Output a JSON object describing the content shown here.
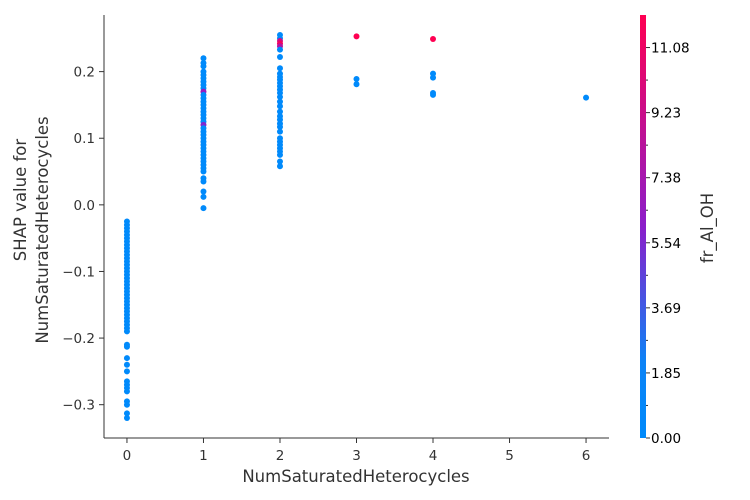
{
  "chart_data": {
    "type": "scatter",
    "title": "",
    "xlabel": "NumSaturatedHeterocycles",
    "ylabel_lines": [
      "SHAP value for",
      "NumSaturatedHeterocycles"
    ],
    "xlim": [
      -0.3,
      6.3
    ],
    "ylim": [
      -0.35,
      0.285
    ],
    "x_ticks": [
      0,
      1,
      2,
      3,
      4,
      5,
      6
    ],
    "y_ticks": [
      -0.3,
      -0.2,
      -0.1,
      0.0,
      0.1,
      0.2
    ],
    "y_tick_labels": [
      "−0.3",
      "−0.2",
      "−0.1",
      "0.0",
      "0.1",
      "0.2"
    ],
    "grid": false,
    "colorbar": {
      "label": "fr_Al_OH",
      "range": [
        0.0,
        12.0
      ],
      "ticks": [
        "0.00",
        "1.85",
        "3.69",
        "5.54",
        "7.38",
        "9.23",
        "11.08"
      ],
      "low_color": "#008afb",
      "mid_color": "#8b1eca",
      "high_color": "#ff0052"
    },
    "points": [
      {
        "x": 0,
        "y": -0.025,
        "c": 0
      },
      {
        "x": 0,
        "y": -0.03,
        "c": 0
      },
      {
        "x": 0,
        "y": -0.035,
        "c": 0
      },
      {
        "x": 0,
        "y": -0.04,
        "c": 0
      },
      {
        "x": 0,
        "y": -0.045,
        "c": 0
      },
      {
        "x": 0,
        "y": -0.05,
        "c": 0
      },
      {
        "x": 0,
        "y": -0.055,
        "c": 0
      },
      {
        "x": 0,
        "y": -0.06,
        "c": 0
      },
      {
        "x": 0,
        "y": -0.065,
        "c": 0
      },
      {
        "x": 0,
        "y": -0.07,
        "c": 0
      },
      {
        "x": 0,
        "y": -0.075,
        "c": 0
      },
      {
        "x": 0,
        "y": -0.08,
        "c": 0
      },
      {
        "x": 0,
        "y": -0.085,
        "c": 0
      },
      {
        "x": 0,
        "y": -0.09,
        "c": 0
      },
      {
        "x": 0,
        "y": -0.095,
        "c": 0
      },
      {
        "x": 0,
        "y": -0.1,
        "c": 0
      },
      {
        "x": 0,
        "y": -0.105,
        "c": 0
      },
      {
        "x": 0,
        "y": -0.11,
        "c": 0
      },
      {
        "x": 0,
        "y": -0.115,
        "c": 0
      },
      {
        "x": 0,
        "y": -0.12,
        "c": 0
      },
      {
        "x": 0,
        "y": -0.125,
        "c": 0
      },
      {
        "x": 0,
        "y": -0.13,
        "c": 0
      },
      {
        "x": 0,
        "y": -0.135,
        "c": 0
      },
      {
        "x": 0,
        "y": -0.14,
        "c": 0
      },
      {
        "x": 0,
        "y": -0.145,
        "c": 0
      },
      {
        "x": 0,
        "y": -0.15,
        "c": 0
      },
      {
        "x": 0,
        "y": -0.155,
        "c": 0
      },
      {
        "x": 0,
        "y": -0.16,
        "c": 0
      },
      {
        "x": 0,
        "y": -0.165,
        "c": 0
      },
      {
        "x": 0,
        "y": -0.17,
        "c": 0
      },
      {
        "x": 0,
        "y": -0.175,
        "c": 0
      },
      {
        "x": 0,
        "y": -0.18,
        "c": 0
      },
      {
        "x": 0,
        "y": -0.185,
        "c": 0
      },
      {
        "x": 0,
        "y": -0.19,
        "c": 0
      },
      {
        "x": 0,
        "y": -0.21,
        "c": 0
      },
      {
        "x": 0,
        "y": -0.213,
        "c": 0
      },
      {
        "x": 0,
        "y": -0.23,
        "c": 0
      },
      {
        "x": 0,
        "y": -0.24,
        "c": 0
      },
      {
        "x": 0,
        "y": -0.25,
        "c": 0
      },
      {
        "x": 0,
        "y": -0.265,
        "c": 0
      },
      {
        "x": 0,
        "y": -0.27,
        "c": 0
      },
      {
        "x": 0,
        "y": -0.275,
        "c": 0
      },
      {
        "x": 0,
        "y": -0.28,
        "c": 0
      },
      {
        "x": 0,
        "y": -0.295,
        "c": 0
      },
      {
        "x": 0,
        "y": -0.3,
        "c": 0
      },
      {
        "x": 0,
        "y": -0.313,
        "c": 0
      },
      {
        "x": 0,
        "y": -0.32,
        "c": 0
      },
      {
        "x": 1,
        "y": 0.22,
        "c": 0
      },
      {
        "x": 1,
        "y": 0.213,
        "c": 0
      },
      {
        "x": 1,
        "y": 0.208,
        "c": 0
      },
      {
        "x": 1,
        "y": 0.2,
        "c": 0
      },
      {
        "x": 1,
        "y": 0.195,
        "c": 0
      },
      {
        "x": 1,
        "y": 0.19,
        "c": 0
      },
      {
        "x": 1,
        "y": 0.185,
        "c": 0
      },
      {
        "x": 1,
        "y": 0.18,
        "c": 0
      },
      {
        "x": 1,
        "y": 0.175,
        "c": 0
      },
      {
        "x": 1,
        "y": 0.17,
        "c": 6.5
      },
      {
        "x": 1,
        "y": 0.165,
        "c": 0
      },
      {
        "x": 1,
        "y": 0.16,
        "c": 0
      },
      {
        "x": 1,
        "y": 0.155,
        "c": 0
      },
      {
        "x": 1,
        "y": 0.15,
        "c": 0
      },
      {
        "x": 1,
        "y": 0.145,
        "c": 0
      },
      {
        "x": 1,
        "y": 0.14,
        "c": 0
      },
      {
        "x": 1,
        "y": 0.135,
        "c": 0
      },
      {
        "x": 1,
        "y": 0.13,
        "c": 0
      },
      {
        "x": 1,
        "y": 0.125,
        "c": 0
      },
      {
        "x": 1,
        "y": 0.12,
        "c": 5.5
      },
      {
        "x": 1,
        "y": 0.115,
        "c": 0
      },
      {
        "x": 1,
        "y": 0.11,
        "c": 0
      },
      {
        "x": 1,
        "y": 0.105,
        "c": 0
      },
      {
        "x": 1,
        "y": 0.1,
        "c": 0
      },
      {
        "x": 1,
        "y": 0.095,
        "c": 0
      },
      {
        "x": 1,
        "y": 0.09,
        "c": 0
      },
      {
        "x": 1,
        "y": 0.085,
        "c": 0
      },
      {
        "x": 1,
        "y": 0.08,
        "c": 0
      },
      {
        "x": 1,
        "y": 0.075,
        "c": 0
      },
      {
        "x": 1,
        "y": 0.07,
        "c": 0
      },
      {
        "x": 1,
        "y": 0.065,
        "c": 0
      },
      {
        "x": 1,
        "y": 0.06,
        "c": 0
      },
      {
        "x": 1,
        "y": 0.055,
        "c": 0
      },
      {
        "x": 1,
        "y": 0.05,
        "c": 0
      },
      {
        "x": 1,
        "y": 0.04,
        "c": 0
      },
      {
        "x": 1,
        "y": 0.035,
        "c": 0
      },
      {
        "x": 1,
        "y": 0.02,
        "c": 0
      },
      {
        "x": 1,
        "y": 0.012,
        "c": 0
      },
      {
        "x": 1,
        "y": -0.005,
        "c": 0
      },
      {
        "x": 2,
        "y": 0.255,
        "c": 0
      },
      {
        "x": 2,
        "y": 0.25,
        "c": 0
      },
      {
        "x": 2,
        "y": 0.246,
        "c": 9.5
      },
      {
        "x": 2,
        "y": 0.242,
        "c": 11.5
      },
      {
        "x": 2,
        "y": 0.238,
        "c": 8.0
      },
      {
        "x": 2,
        "y": 0.233,
        "c": 0
      },
      {
        "x": 2,
        "y": 0.222,
        "c": 0
      },
      {
        "x": 2,
        "y": 0.205,
        "c": 0
      },
      {
        "x": 2,
        "y": 0.197,
        "c": 0
      },
      {
        "x": 2,
        "y": 0.192,
        "c": 0
      },
      {
        "x": 2,
        "y": 0.188,
        "c": 0
      },
      {
        "x": 2,
        "y": 0.183,
        "c": 0
      },
      {
        "x": 2,
        "y": 0.178,
        "c": 0
      },
      {
        "x": 2,
        "y": 0.173,
        "c": 0
      },
      {
        "x": 2,
        "y": 0.168,
        "c": 0
      },
      {
        "x": 2,
        "y": 0.162,
        "c": 0
      },
      {
        "x": 2,
        "y": 0.155,
        "c": 0
      },
      {
        "x": 2,
        "y": 0.148,
        "c": 0
      },
      {
        "x": 2,
        "y": 0.14,
        "c": 0
      },
      {
        "x": 2,
        "y": 0.133,
        "c": 0
      },
      {
        "x": 2,
        "y": 0.128,
        "c": 0
      },
      {
        "x": 2,
        "y": 0.122,
        "c": 0
      },
      {
        "x": 2,
        "y": 0.117,
        "c": 0
      },
      {
        "x": 2,
        "y": 0.11,
        "c": 0
      },
      {
        "x": 2,
        "y": 0.1,
        "c": 0
      },
      {
        "x": 2,
        "y": 0.095,
        "c": 0
      },
      {
        "x": 2,
        "y": 0.09,
        "c": 0
      },
      {
        "x": 2,
        "y": 0.085,
        "c": 0
      },
      {
        "x": 2,
        "y": 0.08,
        "c": 0
      },
      {
        "x": 2,
        "y": 0.075,
        "c": 0
      },
      {
        "x": 2,
        "y": 0.065,
        "c": 0
      },
      {
        "x": 2,
        "y": 0.058,
        "c": 0
      },
      {
        "x": 3,
        "y": 0.253,
        "c": 12.0
      },
      {
        "x": 3,
        "y": 0.189,
        "c": 0
      },
      {
        "x": 3,
        "y": 0.181,
        "c": 0
      },
      {
        "x": 4,
        "y": 0.249,
        "c": 12.0
      },
      {
        "x": 4,
        "y": 0.197,
        "c": 0
      },
      {
        "x": 4,
        "y": 0.191,
        "c": 0
      },
      {
        "x": 4,
        "y": 0.168,
        "c": 0
      },
      {
        "x": 4,
        "y": 0.165,
        "c": 0
      },
      {
        "x": 6,
        "y": 0.161,
        "c": 0
      }
    ]
  }
}
